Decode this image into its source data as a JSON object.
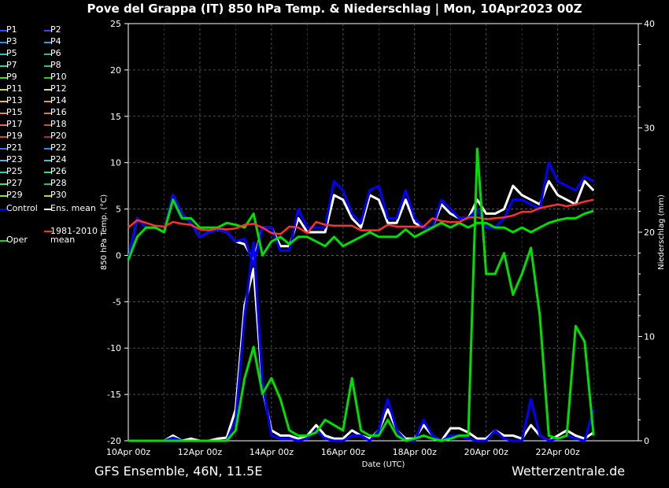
{
  "title": "Pove del Grappa  (IT)  850 hPa Temp. & Niederschlag | Mon, 10Apr2023 00Z",
  "footer": {
    "model": "GFS Ensemble, 46N, 11.5E",
    "source": "Wetterzentrale.de"
  },
  "legend": [
    {
      "label": "P1",
      "color": "#3050ff"
    },
    {
      "label": "P2",
      "color": "#2050ff"
    },
    {
      "label": "P3",
      "color": "#4080ff"
    },
    {
      "label": "P4",
      "color": "#30a0e0"
    },
    {
      "label": "P5",
      "color": "#30c0c0"
    },
    {
      "label": "P6",
      "color": "#30c080"
    },
    {
      "label": "P7",
      "color": "#30d0a0"
    },
    {
      "label": "P8",
      "color": "#40c060"
    },
    {
      "label": "P9",
      "color": "#40e040"
    },
    {
      "label": "P10",
      "color": "#20d020"
    },
    {
      "label": "P11",
      "color": "#c0e040"
    },
    {
      "label": "P12",
      "color": "#e0e060"
    },
    {
      "label": "P13",
      "color": "#e0c040"
    },
    {
      "label": "P14",
      "color": "#e0a030"
    },
    {
      "label": "P15",
      "color": "#e09040"
    },
    {
      "label": "P16",
      "color": "#d08040"
    },
    {
      "label": "P17",
      "color": "#e07050"
    },
    {
      "label": "P18",
      "color": "#d05030"
    },
    {
      "label": "P19",
      "color": "#e04030"
    },
    {
      "label": "P20",
      "color": "#c02020"
    },
    {
      "label": "P21",
      "color": "#4070e0"
    },
    {
      "label": "P22",
      "color": "#3090e0"
    },
    {
      "label": "P23",
      "color": "#50b0e0"
    },
    {
      "label": "P24",
      "color": "#40c0d0"
    },
    {
      "label": "P25",
      "color": "#30d0b0"
    },
    {
      "label": "P26",
      "color": "#30e090"
    },
    {
      "label": "P27",
      "color": "#50e070"
    },
    {
      "label": "P28",
      "color": "#30c050"
    },
    {
      "label": "P29",
      "color": "#90e040"
    },
    {
      "label": "P30",
      "color": "#d0d030"
    },
    {
      "label": "Control",
      "color": "#0000ff"
    },
    {
      "label": "Ens. mean",
      "color": "#ffffff"
    },
    {
      "label": "Oper",
      "color": "#00e000"
    },
    {
      "label": "1981-2010 mean",
      "color": "#ff3030"
    }
  ],
  "chart_data": {
    "type": "line",
    "xlabel": "Date (UTC)",
    "ylabel": "850 hPa Temp. (°C)",
    "y2label": "Niederschlag (mm)",
    "ylim": [
      -20,
      25
    ],
    "y2lim": [
      0,
      40
    ],
    "yticks": [
      "25",
      "20",
      "15",
      "10",
      "5",
      "0",
      "-5",
      "-10",
      "-15",
      "-20"
    ],
    "y2ticks": [
      "40",
      "30",
      "20",
      "10",
      "0"
    ],
    "x_range_hours": [
      0,
      342
    ],
    "xticks": [
      {
        "label": "10Apr 00z",
        "h": 0
      },
      {
        "label": "12Apr 00z",
        "h": 48
      },
      {
        "label": "14Apr 00z",
        "h": 96
      },
      {
        "label": "16Apr 00z",
        "h": 144
      },
      {
        "label": "18Apr 00z",
        "h": 192
      },
      {
        "label": "20Apr 00z",
        "h": 240
      },
      {
        "label": "22Apr 00z",
        "h": 288
      }
    ],
    "grid": true,
    "step_hours": 6,
    "series": [
      {
        "name": "Ens. mean",
        "axis": "temp",
        "color": "#ffffff",
        "values": [
          -0.5,
          4,
          3,
          3,
          2.5,
          6.5,
          4.5,
          3.5,
          2,
          2.5,
          2.8,
          2.5,
          1.5,
          1.2,
          -0.5,
          3,
          3,
          1,
          1,
          4,
          2.5,
          2.5,
          2.5,
          6.5,
          6,
          4,
          3,
          6.5,
          6,
          3.5,
          3.5,
          6,
          3.5,
          3,
          3,
          5.5,
          4.5,
          4,
          4,
          6,
          4.5,
          4.5,
          5,
          7.5,
          6.5,
          6,
          5.5,
          8,
          6.5,
          6,
          5.5,
          8,
          7
        ]
      },
      {
        "name": "Control",
        "axis": "temp",
        "color": "#0000ff",
        "values": [
          -0.5,
          4,
          3,
          3,
          2.5,
          6.5,
          4.5,
          3.5,
          2,
          2.5,
          2.8,
          2.5,
          1.5,
          1.8,
          -1,
          3,
          3,
          0.5,
          0.5,
          5,
          3,
          3,
          3,
          8,
          7,
          4.5,
          3.5,
          7,
          7.5,
          4,
          4,
          7,
          4,
          3,
          3,
          6,
          5,
          4,
          4,
          5,
          3,
          3,
          4,
          6,
          6,
          5.5,
          5,
          10,
          8,
          7.5,
          7,
          8.5,
          8
        ]
      },
      {
        "name": "Oper",
        "axis": "temp",
        "color": "#00e000",
        "values": [
          -0.5,
          2,
          3,
          3,
          2.5,
          6,
          4,
          4,
          3,
          3,
          3,
          3.5,
          3.3,
          3,
          4.5,
          0,
          1.5,
          2,
          1.2,
          2,
          2,
          1.5,
          1,
          2,
          1,
          1.5,
          2,
          2.5,
          2,
          2,
          2,
          2.8,
          2,
          2.5,
          3,
          3.5,
          3,
          3.5,
          3,
          3.5,
          3.5,
          3,
          3,
          2.5,
          3,
          2.5,
          3,
          3.5,
          3.8,
          4,
          4,
          4.5,
          4.8
        ]
      },
      {
        "name": "1981-2010 mean",
        "axis": "temp",
        "color": "#ff3030",
        "values": [
          3,
          3.8,
          3.5,
          3.2,
          3.1,
          3.6,
          3.4,
          3.3,
          2.8,
          2.7,
          2.9,
          2.8,
          2.9,
          3.3,
          3.4,
          3,
          2.4,
          2.3,
          3.1,
          3,
          2.4,
          3.6,
          3.3,
          3.2,
          3.2,
          3.2,
          2.7,
          2.7,
          2.7,
          3.3,
          3.1,
          3.1,
          3.1,
          3.1,
          4,
          3.7,
          3.6,
          3.6,
          4.1,
          4.1,
          3.9,
          4,
          4.1,
          4.3,
          4.7,
          4.7,
          5.1,
          5.3,
          5.5,
          5.3,
          5.5,
          5.8,
          6
        ]
      },
      {
        "name": "Ens. mean",
        "axis": "precip",
        "color": "#ffffff",
        "values": [
          0,
          0,
          0,
          0,
          0,
          0.5,
          0,
          0.2,
          0,
          0,
          0.2,
          0.3,
          3,
          13,
          16.5,
          5,
          1,
          0.5,
          0.5,
          0.2,
          0.5,
          1.5,
          0.5,
          0.2,
          0.2,
          1,
          0.5,
          0.2,
          1,
          3,
          1,
          0.2,
          0.2,
          1.5,
          0.5,
          0,
          1.2,
          1.2,
          0.8,
          0.2,
          0.2,
          1,
          0.5,
          0.5,
          0.2,
          1.5,
          0.5,
          0,
          0.5,
          1,
          0.5,
          0.2,
          0.8
        ]
      },
      {
        "name": "Control",
        "axis": "precip",
        "color": "#0000ff",
        "values": [
          0,
          0,
          0,
          0,
          0,
          0.3,
          0,
          0,
          0,
          0,
          0,
          0,
          2,
          12,
          19,
          5.5,
          0.5,
          0.2,
          0.2,
          0,
          0.2,
          1,
          0.2,
          0,
          0,
          0.5,
          0.5,
          0,
          1,
          4,
          1,
          0,
          0,
          2,
          0.5,
          0,
          0.5,
          0.5,
          0.2,
          0,
          0,
          1,
          0.2,
          0,
          0,
          4,
          0.5,
          0,
          0.2,
          0.5,
          0.2,
          0,
          3
        ]
      },
      {
        "name": "Oper",
        "axis": "precip",
        "color": "#00e000",
        "values": [
          0,
          0,
          0,
          0,
          0,
          0,
          0,
          0,
          0,
          0,
          0,
          0,
          1,
          6,
          9,
          4.5,
          6,
          4,
          1,
          0.5,
          0.5,
          0.8,
          2,
          1.5,
          1,
          6,
          1,
          0.5,
          0.5,
          2,
          0.5,
          0,
          0.2,
          0.5,
          0.2,
          0,
          0.2,
          0.5,
          0.5,
          28,
          16,
          16,
          18,
          14,
          16,
          18.5,
          12,
          0.5,
          0.2,
          0.5,
          11,
          9.5,
          0.5
        ]
      }
    ]
  }
}
